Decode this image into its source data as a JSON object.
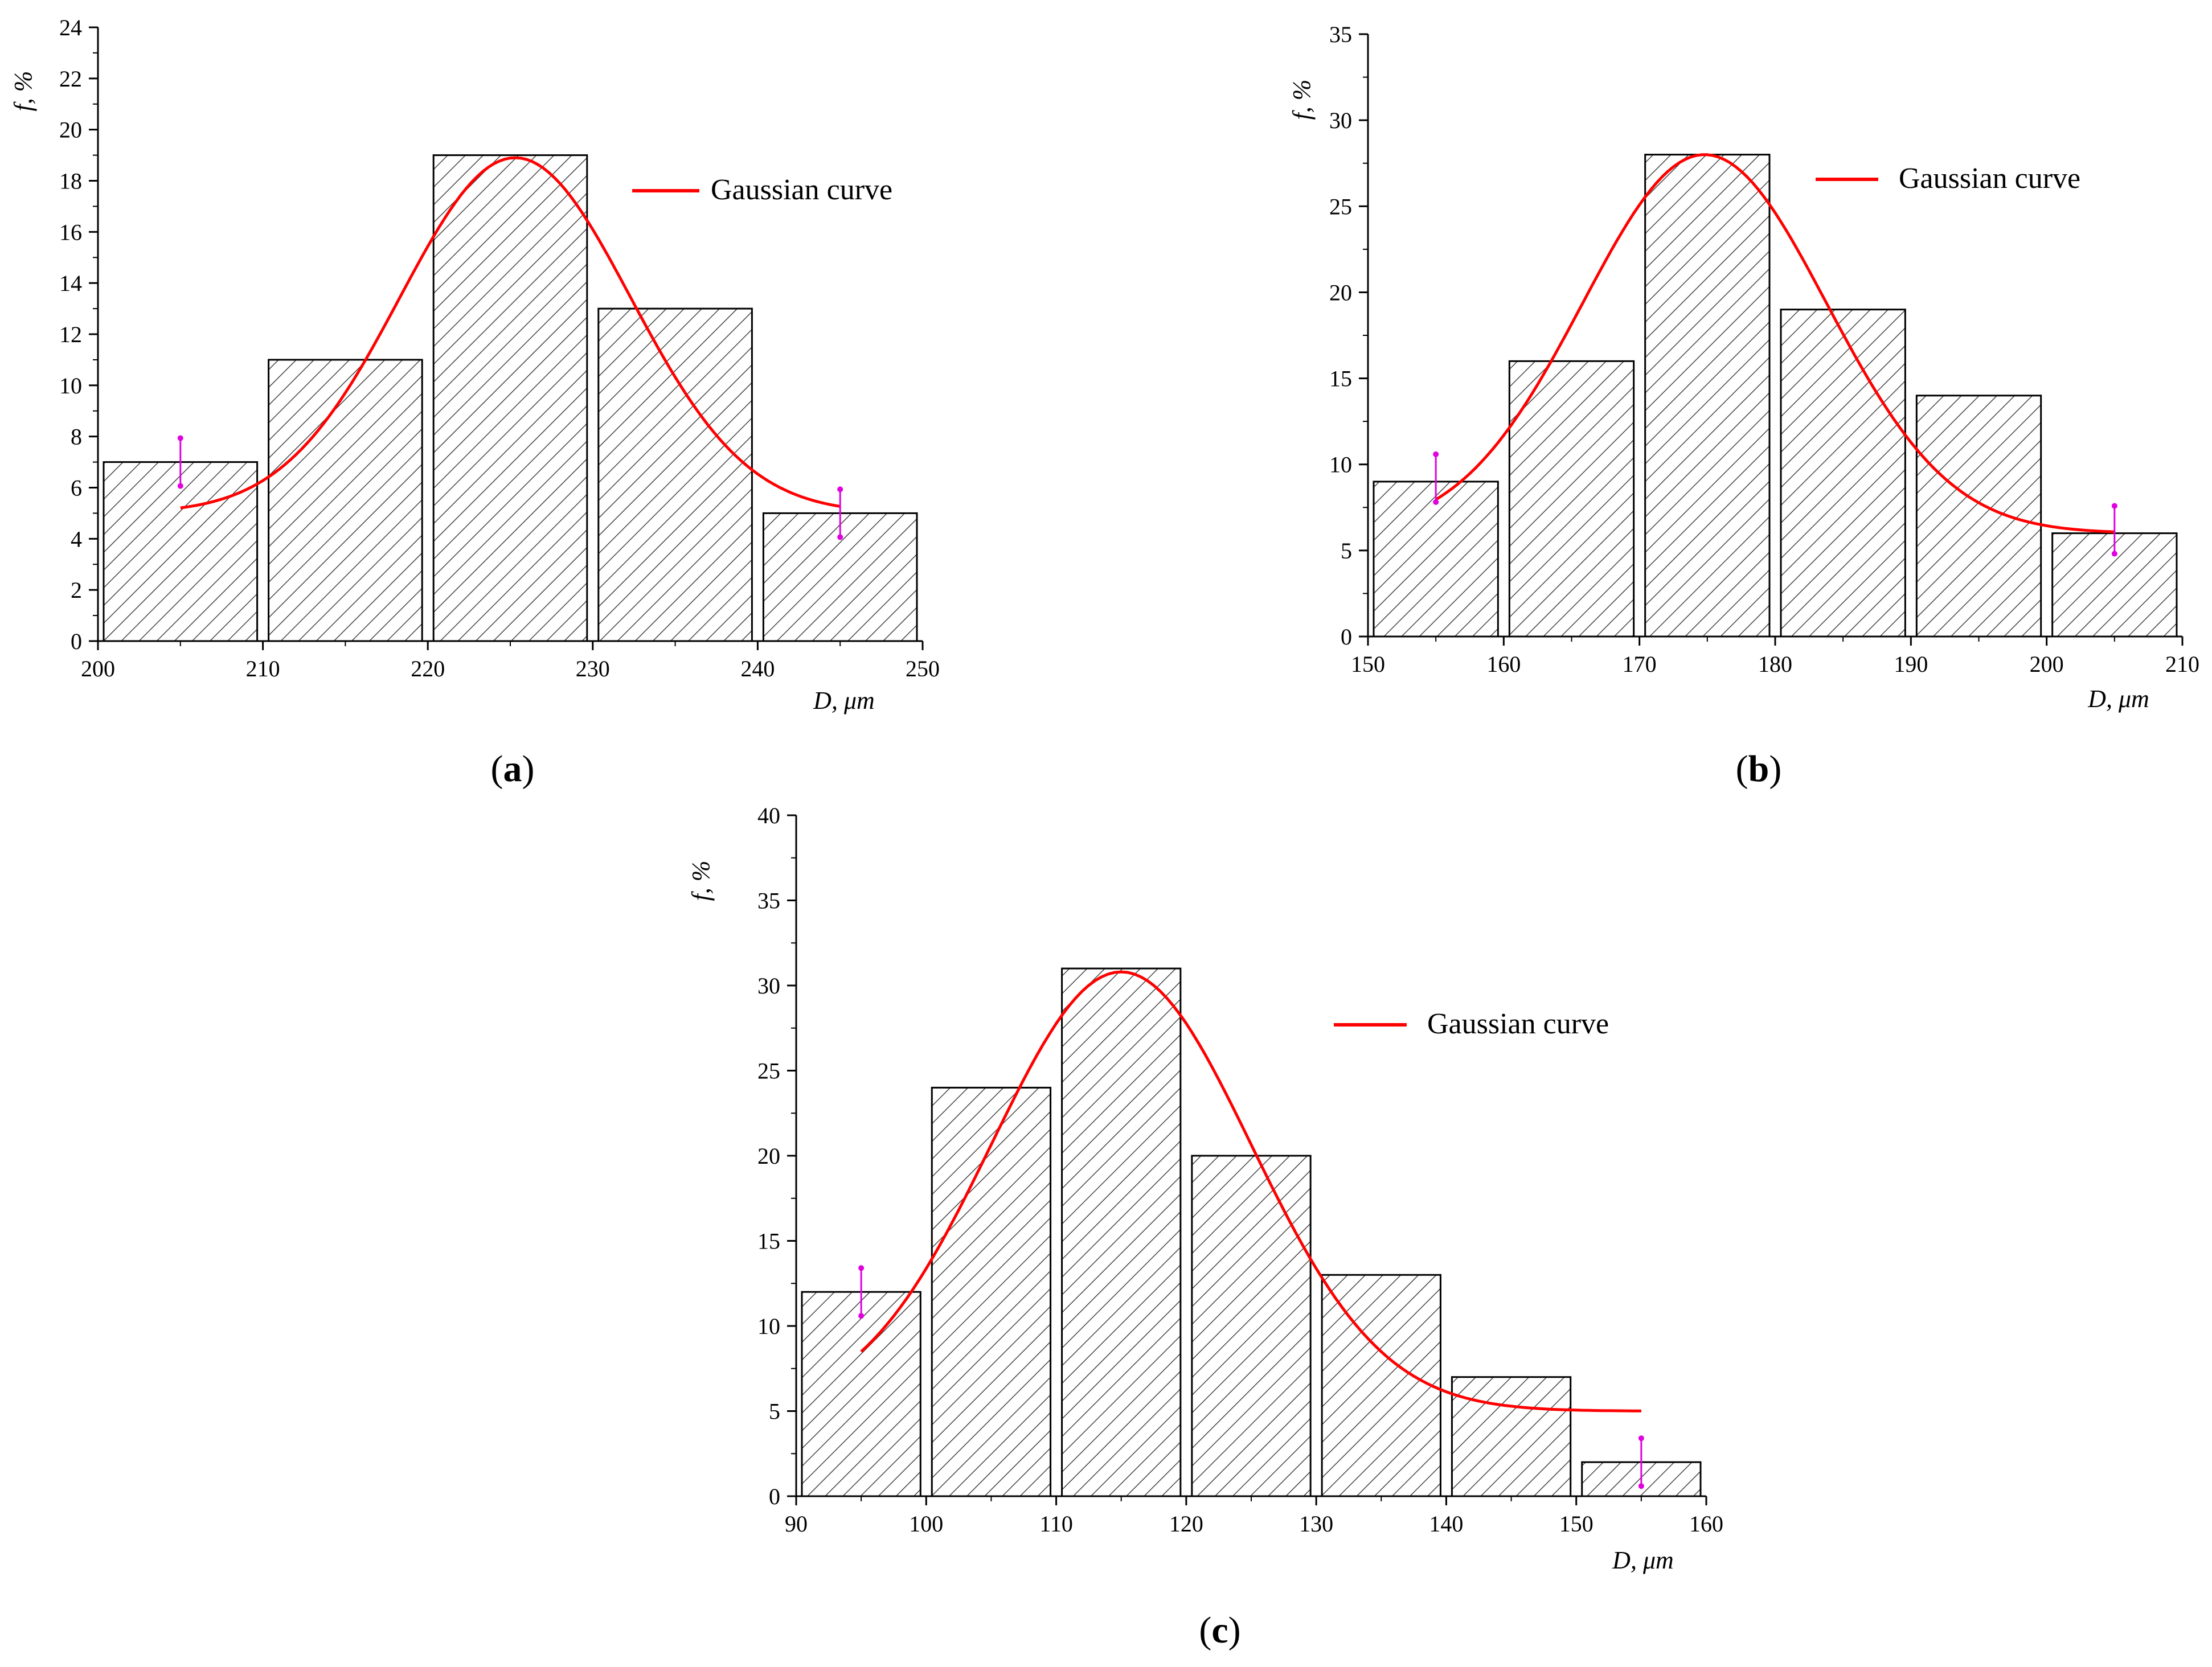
{
  "figure": {
    "panels": [
      {
        "open": "(",
        "letter": "a",
        "close": ")"
      },
      {
        "open": "(",
        "letter": "b",
        "close": ")"
      },
      {
        "open": "(",
        "letter": "c",
        "close": ")"
      }
    ]
  },
  "colors": {
    "bar_fill": "#ffffff",
    "bar_stroke": "#000000",
    "hatch": "#444444",
    "curve": "#ff0000",
    "marker": "#e000e0",
    "axis": "#000000"
  },
  "chart_data": [
    {
      "type": "bar",
      "id": "a",
      "title": "",
      "xlabel": "D, μm",
      "ylabel": "f, %",
      "xlim": [
        200,
        250
      ],
      "ylim": [
        0,
        24
      ],
      "x_ticks": [
        200,
        210,
        220,
        230,
        240,
        250
      ],
      "y_ticks": [
        0,
        2,
        4,
        6,
        8,
        10,
        12,
        14,
        16,
        18,
        20,
        22,
        24
      ],
      "bins": [
        [
          200,
          210
        ],
        [
          210,
          220
        ],
        [
          220,
          230
        ],
        [
          230,
          240
        ],
        [
          240,
          250
        ]
      ],
      "values": [
        7,
        11,
        19,
        13,
        5
      ],
      "legend": "Gaussian curve",
      "legend_position": "top-right",
      "gaussian": {
        "y0": 5.0,
        "xc": 225.3,
        "w": 14.0,
        "h": 13.9,
        "x_range": [
          205,
          245
        ]
      },
      "end_markers": [
        {
          "x": 205,
          "y": 7.0
        },
        {
          "x": 245,
          "y": 5.0
        }
      ]
    },
    {
      "type": "bar",
      "id": "b",
      "title": "",
      "xlabel": "D, μm",
      "ylabel": "f, %",
      "xlim": [
        150,
        210
      ],
      "ylim": [
        0,
        35
      ],
      "x_ticks": [
        150,
        160,
        170,
        180,
        190,
        200,
        210
      ],
      "y_ticks": [
        0,
        5,
        10,
        15,
        20,
        25,
        30,
        35
      ],
      "bins": [
        [
          150,
          160
        ],
        [
          160,
          170
        ],
        [
          170,
          180
        ],
        [
          180,
          190
        ],
        [
          190,
          200
        ],
        [
          200,
          210
        ]
      ],
      "values": [
        9,
        16,
        28,
        19,
        14,
        6
      ],
      "legend": "Gaussian curve",
      "legend_position": "top-right",
      "gaussian": {
        "y0": 6.0,
        "xc": 174.8,
        "w": 18.0,
        "h": 22.0,
        "x_range": [
          155,
          205
        ]
      },
      "end_markers": [
        {
          "x": 155,
          "y": 9.2
        },
        {
          "x": 205,
          "y": 6.2
        }
      ]
    },
    {
      "type": "bar",
      "id": "c",
      "title": "",
      "xlabel": "D, μm",
      "ylabel": "f, %",
      "xlim": [
        90,
        160
      ],
      "ylim": [
        0,
        40
      ],
      "x_ticks": [
        90,
        100,
        110,
        120,
        130,
        140,
        150,
        160
      ],
      "y_ticks": [
        0,
        5,
        10,
        15,
        20,
        25,
        30,
        35,
        40
      ],
      "bins": [
        [
          90,
          100
        ],
        [
          100,
          110
        ],
        [
          110,
          120
        ],
        [
          120,
          130
        ],
        [
          130,
          140
        ],
        [
          140,
          150
        ],
        [
          150,
          160
        ]
      ],
      "values": [
        12,
        24,
        31,
        20,
        13,
        7,
        2
      ],
      "legend": "Gaussian curve",
      "legend_position": "top-right",
      "gaussian": {
        "y0": 5.0,
        "xc": 115.0,
        "w": 20.0,
        "h": 25.8,
        "x_range": [
          95,
          155
        ]
      },
      "end_markers": [
        {
          "x": 95,
          "y": 12.0
        },
        {
          "x": 155,
          "y": 2.0
        }
      ]
    }
  ]
}
